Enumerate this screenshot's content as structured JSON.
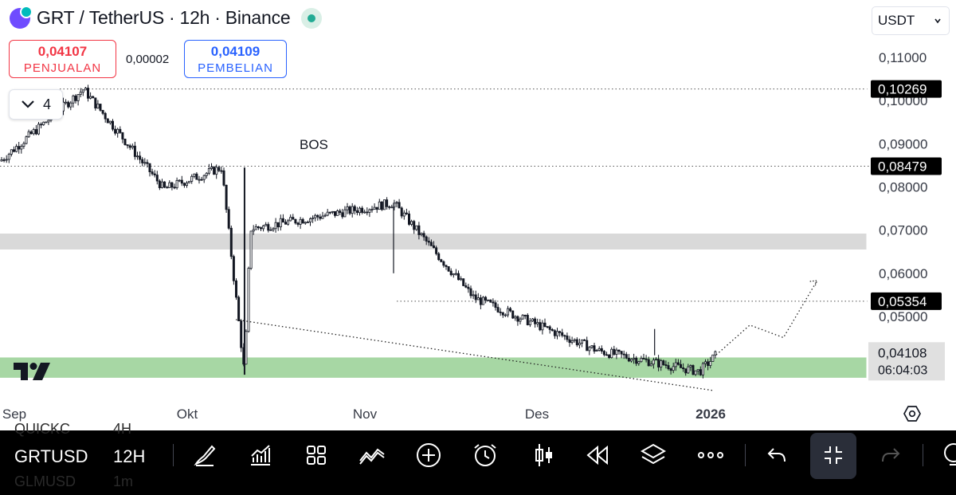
{
  "header": {
    "symbol": "GRT",
    "quote": "TetherUS",
    "interval": "12h",
    "exchange": "Binance",
    "market_status": "open-green-dot"
  },
  "trade": {
    "sell_price": "0,04107",
    "sell_label": "PENJUALAN",
    "spread": "0,00002",
    "buy_price": "0,04109",
    "buy_label": "PEMBELIAN"
  },
  "indicators_collapsed_count": "4",
  "currency_selector": "USDT",
  "annotation_text": "BOS",
  "colors": {
    "up": "#131722",
    "down": "#131722",
    "supply_zone": "#d9d9d9",
    "demand_zone": "#a7d7a4",
    "sell": "#f23645",
    "buy": "#2962ff",
    "last_price_bg": "#e0e0e0"
  },
  "chart_data": {
    "type": "candlestick",
    "x_ticks": [
      "Sep",
      "Okt",
      "Nov",
      "Des",
      "2026"
    ],
    "y_ticks": [
      "0,11000",
      "0,10000",
      "0,09000",
      "0,08000",
      "0,07000",
      "0,06000",
      "0,05000"
    ],
    "ylim": [
      0.0348,
      0.1134
    ],
    "price_labels": [
      {
        "text": "0,10269",
        "value": 0.10269
      },
      {
        "text": "0,08479",
        "value": 0.08479
      },
      {
        "text": "0,05354",
        "value": 0.05354
      }
    ],
    "last_price": {
      "text": "0,04108",
      "value": 0.04108,
      "countdown": "06:04:03"
    },
    "zones": [
      {
        "name": "supply",
        "from": 0.0655,
        "to": 0.0692
      },
      {
        "name": "demand",
        "from": 0.0358,
        "to": 0.0405
      }
    ],
    "key_points": [
      {
        "date": "Sep",
        "price": 0.086
      },
      {
        "date": "Sep 13",
        "price": 0.1026
      },
      {
        "date": "Sep 27",
        "price": 0.0795
      },
      {
        "date": "Okt 7",
        "price": 0.0845
      },
      {
        "date": "Okt 11",
        "price": 0.0365
      },
      {
        "date": "Okt 12",
        "price": 0.0703
      },
      {
        "date": "Nov 6",
        "price": 0.0763
      },
      {
        "date": "Nov 20",
        "price": 0.0543
      },
      {
        "date": "Des 12",
        "price": 0.042
      },
      {
        "date": "Des 30",
        "price": 0.0372
      },
      {
        "date": "Jan 2",
        "price": 0.0411
      }
    ],
    "projection": [
      {
        "date": "Jan 2",
        "price": 0.0411
      },
      {
        "date": "Jan 4",
        "price": 0.0434
      },
      {
        "date": "Jan 8",
        "price": 0.048
      },
      {
        "date": "Jan 14",
        "price": 0.0451
      },
      {
        "date": "Jan 20",
        "price": 0.0583
      }
    ]
  },
  "toolbar": {
    "symbol_label": "GRTUSD",
    "interval_label": "12H",
    "ghost_above": "QUICKC",
    "ghost_above_interval": "4H",
    "ghost_below": "GLMUSD",
    "ghost_below_interval": "1m",
    "icons": [
      "brush-icon",
      "indicators-icon",
      "grid-icon",
      "drawings-icon",
      "add-icon",
      "alarm-icon",
      "candles-icon",
      "replay-icon",
      "layers-icon",
      "more-icon",
      "undo-icon",
      "collapse-icon",
      "redo-icon",
      "idea-icon"
    ]
  }
}
